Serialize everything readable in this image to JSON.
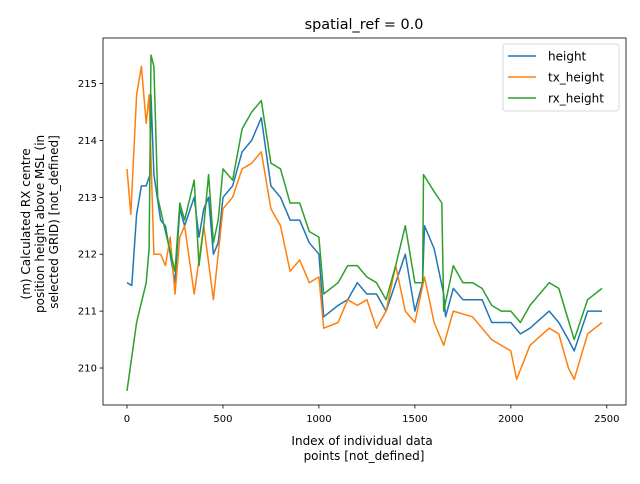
{
  "chart_data": {
    "type": "line",
    "title": "spatial_ref = 0.0",
    "xlabel": [
      "Index of individual data",
      "points [not_defined]"
    ],
    "ylabel": [
      "(m) Calculated RX centre",
      "position height above MSL (in",
      "selected GRID) [not_defined]"
    ],
    "xlim": [
      -125,
      2600
    ],
    "ylim": [
      209.35,
      215.8
    ],
    "xticks": [
      0,
      500,
      1000,
      1500,
      2000,
      2500
    ],
    "yticks": [
      210,
      211,
      212,
      213,
      214,
      215
    ],
    "grid": false,
    "legend": "top-right",
    "series": [
      {
        "name": "height",
        "color": "#1f77b4",
        "points": [
          [
            0,
            211.5
          ],
          [
            25,
            211.45
          ],
          [
            50,
            212.7
          ],
          [
            75,
            213.2
          ],
          [
            100,
            213.2
          ],
          [
            120,
            213.4
          ],
          [
            125,
            214.8
          ],
          [
            140,
            213.4
          ],
          [
            175,
            212.6
          ],
          [
            200,
            212.5
          ],
          [
            250,
            211.5
          ],
          [
            275,
            212.8
          ],
          [
            300,
            212.5
          ],
          [
            350,
            213.0
          ],
          [
            375,
            212.3
          ],
          [
            400,
            212.8
          ],
          [
            425,
            213.0
          ],
          [
            450,
            212.0
          ],
          [
            475,
            212.2
          ],
          [
            500,
            213.0
          ],
          [
            550,
            213.2
          ],
          [
            600,
            213.8
          ],
          [
            650,
            214.0
          ],
          [
            700,
            214.4
          ],
          [
            750,
            213.2
          ],
          [
            800,
            213.0
          ],
          [
            850,
            212.6
          ],
          [
            900,
            212.6
          ],
          [
            950,
            212.2
          ],
          [
            1000,
            212.0
          ],
          [
            1025,
            210.9
          ],
          [
            1100,
            211.1
          ],
          [
            1150,
            211.2
          ],
          [
            1200,
            211.5
          ],
          [
            1250,
            211.3
          ],
          [
            1300,
            211.3
          ],
          [
            1350,
            211.0
          ],
          [
            1400,
            211.5
          ],
          [
            1450,
            212.0
          ],
          [
            1500,
            211.0
          ],
          [
            1540,
            211.5
          ],
          [
            1550,
            212.5
          ],
          [
            1600,
            212.1
          ],
          [
            1650,
            211.3
          ],
          [
            1660,
            210.9
          ],
          [
            1700,
            211.4
          ],
          [
            1750,
            211.2
          ],
          [
            1800,
            211.2
          ],
          [
            1850,
            211.2
          ],
          [
            1900,
            210.8
          ],
          [
            1950,
            210.8
          ],
          [
            2000,
            210.8
          ],
          [
            2050,
            210.6
          ],
          [
            2100,
            210.7
          ],
          [
            2200,
            211.0
          ],
          [
            2250,
            210.8
          ],
          [
            2300,
            210.5
          ],
          [
            2330,
            210.3
          ],
          [
            2400,
            211.0
          ],
          [
            2475,
            211.0
          ]
        ]
      },
      {
        "name": "tx_height",
        "color": "#ff7f0e",
        "points": [
          [
            0,
            213.5
          ],
          [
            20,
            212.7
          ],
          [
            50,
            214.8
          ],
          [
            75,
            215.3
          ],
          [
            100,
            214.3
          ],
          [
            115,
            214.8
          ],
          [
            140,
            212.0
          ],
          [
            175,
            212.0
          ],
          [
            200,
            211.8
          ],
          [
            225,
            212.3
          ],
          [
            250,
            211.3
          ],
          [
            275,
            212.3
          ],
          [
            300,
            212.5
          ],
          [
            350,
            211.3
          ],
          [
            400,
            212.5
          ],
          [
            450,
            211.2
          ],
          [
            500,
            212.8
          ],
          [
            550,
            213.0
          ],
          [
            600,
            213.5
          ],
          [
            650,
            213.6
          ],
          [
            700,
            213.8
          ],
          [
            750,
            212.8
          ],
          [
            800,
            212.5
          ],
          [
            850,
            211.7
          ],
          [
            900,
            211.9
          ],
          [
            950,
            211.5
          ],
          [
            1000,
            211.6
          ],
          [
            1025,
            210.7
          ],
          [
            1100,
            210.8
          ],
          [
            1150,
            211.2
          ],
          [
            1200,
            211.1
          ],
          [
            1250,
            211.2
          ],
          [
            1300,
            210.7
          ],
          [
            1350,
            211.0
          ],
          [
            1400,
            211.8
          ],
          [
            1450,
            211.0
          ],
          [
            1500,
            210.8
          ],
          [
            1550,
            211.6
          ],
          [
            1600,
            210.8
          ],
          [
            1650,
            210.4
          ],
          [
            1700,
            211.0
          ],
          [
            1800,
            210.9
          ],
          [
            1900,
            210.5
          ],
          [
            2000,
            210.3
          ],
          [
            2030,
            209.8
          ],
          [
            2100,
            210.4
          ],
          [
            2200,
            210.7
          ],
          [
            2250,
            210.6
          ],
          [
            2300,
            210.0
          ],
          [
            2330,
            209.8
          ],
          [
            2400,
            210.6
          ],
          [
            2475,
            210.8
          ]
        ]
      },
      {
        "name": "rx_height",
        "color": "#2ca02c",
        "points": [
          [
            0,
            209.6
          ],
          [
            50,
            210.8
          ],
          [
            100,
            211.5
          ],
          [
            115,
            212.1
          ],
          [
            125,
            215.5
          ],
          [
            140,
            215.3
          ],
          [
            160,
            213.0
          ],
          [
            200,
            212.4
          ],
          [
            250,
            211.7
          ],
          [
            275,
            212.9
          ],
          [
            300,
            212.6
          ],
          [
            350,
            213.3
          ],
          [
            375,
            211.8
          ],
          [
            400,
            212.5
          ],
          [
            425,
            213.4
          ],
          [
            450,
            212.2
          ],
          [
            475,
            212.6
          ],
          [
            500,
            213.5
          ],
          [
            550,
            213.3
          ],
          [
            600,
            214.2
          ],
          [
            650,
            214.5
          ],
          [
            700,
            214.7
          ],
          [
            750,
            213.6
          ],
          [
            800,
            213.5
          ],
          [
            850,
            212.9
          ],
          [
            900,
            212.9
          ],
          [
            950,
            212.4
          ],
          [
            1000,
            212.3
          ],
          [
            1025,
            211.3
          ],
          [
            1100,
            211.5
          ],
          [
            1150,
            211.8
          ],
          [
            1200,
            211.8
          ],
          [
            1250,
            211.6
          ],
          [
            1300,
            211.5
          ],
          [
            1350,
            211.2
          ],
          [
            1400,
            211.8
          ],
          [
            1450,
            212.5
          ],
          [
            1500,
            211.5
          ],
          [
            1540,
            211.5
          ],
          [
            1545,
            213.4
          ],
          [
            1600,
            213.1
          ],
          [
            1640,
            212.9
          ],
          [
            1650,
            211.0
          ],
          [
            1700,
            211.8
          ],
          [
            1750,
            211.5
          ],
          [
            1800,
            211.5
          ],
          [
            1850,
            211.4
          ],
          [
            1900,
            211.1
          ],
          [
            1950,
            211.0
          ],
          [
            2000,
            211.0
          ],
          [
            2050,
            210.8
          ],
          [
            2100,
            211.1
          ],
          [
            2200,
            211.5
          ],
          [
            2250,
            211.4
          ],
          [
            2330,
            210.5
          ],
          [
            2400,
            211.2
          ],
          [
            2475,
            211.4
          ]
        ]
      }
    ]
  }
}
